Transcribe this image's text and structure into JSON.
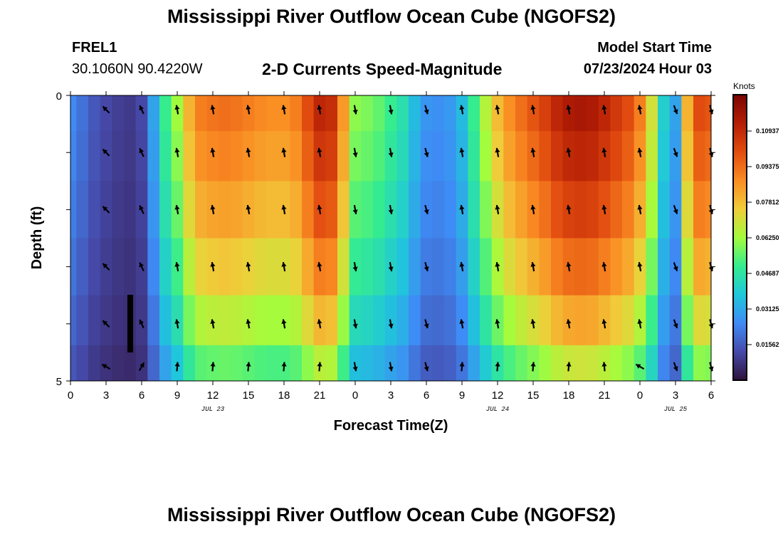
{
  "header": {
    "title": "Mississippi River Outflow Ocean Cube (NGOFS2)",
    "station": "FREL1",
    "coordinates": "30.1060N  90.4220W",
    "subtitle": "2-D Currents Speed-Magnitude",
    "model_start_label": "Model Start Time",
    "model_start_value": "07/23/2024 Hour 03"
  },
  "footer": {
    "title_repeat": "Mississippi River Outflow Ocean Cube (NGOFS2)"
  },
  "chart_data": {
    "type": "heatmap",
    "xlabel": "Forecast Time(Z)",
    "ylabel": "Depth (ft)",
    "xlim": [
      0,
      54
    ],
    "ylim": [
      0,
      5
    ],
    "y_inverted": true,
    "x_ticks": [
      0,
      3,
      6,
      9,
      12,
      15,
      18,
      21,
      24,
      27,
      30,
      33,
      36,
      39,
      42,
      45,
      48,
      51,
      54
    ],
    "x_tick_labels": [
      "0",
      "3",
      "6",
      "9",
      "12",
      "15",
      "18",
      "21",
      "0",
      "3",
      "6",
      "9",
      "12",
      "15",
      "18",
      "21",
      "0",
      "3",
      "6"
    ],
    "y_tick_labels": [
      {
        "value": 0,
        "label": "0"
      },
      {
        "value": 5,
        "label": "5"
      }
    ],
    "date_labels": [
      {
        "x": 12,
        "label": "JUL 23"
      },
      {
        "x": 36,
        "label": "JUL 24"
      },
      {
        "x": 51,
        "label": "JUL 25"
      }
    ],
    "colorbar": {
      "title": "Knots",
      "min": 0.0,
      "max": 0.125,
      "tick_values": [
        0.015625,
        0.03125,
        0.046875,
        0.0625,
        0.078125,
        0.09375,
        0.109375
      ],
      "tick_labels": [
        "0.01562",
        "0.03125",
        "0.04687",
        "0.06250",
        "0.07812",
        "0.09375",
        "0.10937"
      ]
    },
    "depth_layers": [
      0.25,
      1.0,
      2.0,
      3.0,
      4.0,
      4.75
    ],
    "times": [
      0,
      1,
      2,
      3,
      4,
      5,
      6,
      7,
      8,
      9,
      10,
      11,
      12,
      13,
      14,
      15,
      16,
      17,
      18,
      19,
      20,
      21,
      22,
      23,
      24,
      25,
      26,
      27,
      28,
      29,
      30,
      31,
      32,
      33,
      34,
      35,
      36,
      37,
      38,
      39,
      40,
      41,
      42,
      43,
      44,
      45,
      46,
      47,
      48,
      49,
      50,
      51,
      52,
      53,
      54
    ],
    "speed_profile": [
      0.025,
      0.02,
      0.015,
      0.012,
      0.01,
      0.009,
      0.012,
      0.03,
      0.05,
      0.062,
      0.08,
      0.09,
      0.092,
      0.093,
      0.092,
      0.09,
      0.088,
      0.087,
      0.087,
      0.09,
      0.1,
      0.11,
      0.108,
      0.085,
      0.06,
      0.058,
      0.055,
      0.05,
      0.045,
      0.035,
      0.027,
      0.026,
      0.028,
      0.035,
      0.05,
      0.065,
      0.078,
      0.087,
      0.093,
      0.098,
      0.103,
      0.11,
      0.114,
      0.115,
      0.114,
      0.11,
      0.105,
      0.1,
      0.09,
      0.07,
      0.04,
      0.03,
      0.08,
      0.1,
      0.098
    ],
    "depth_factors": [
      1.0,
      0.96,
      0.9,
      0.82,
      0.72,
      0.6
    ],
    "vector_times": [
      3,
      6,
      9,
      12,
      15,
      18,
      21,
      24,
      27,
      30,
      33,
      36,
      39,
      42,
      45,
      48,
      51,
      54
    ],
    "vector_directions_deg": [
      315,
      335,
      350,
      350,
      350,
      350,
      350,
      170,
      170,
      165,
      350,
      350,
      350,
      350,
      350,
      350,
      160,
      165
    ],
    "bottom_vector_directions_deg": [
      300,
      30,
      5,
      5,
      5,
      5,
      5,
      170,
      170,
      165,
      5,
      5,
      5,
      5,
      355,
      300,
      160,
      165
    ]
  }
}
